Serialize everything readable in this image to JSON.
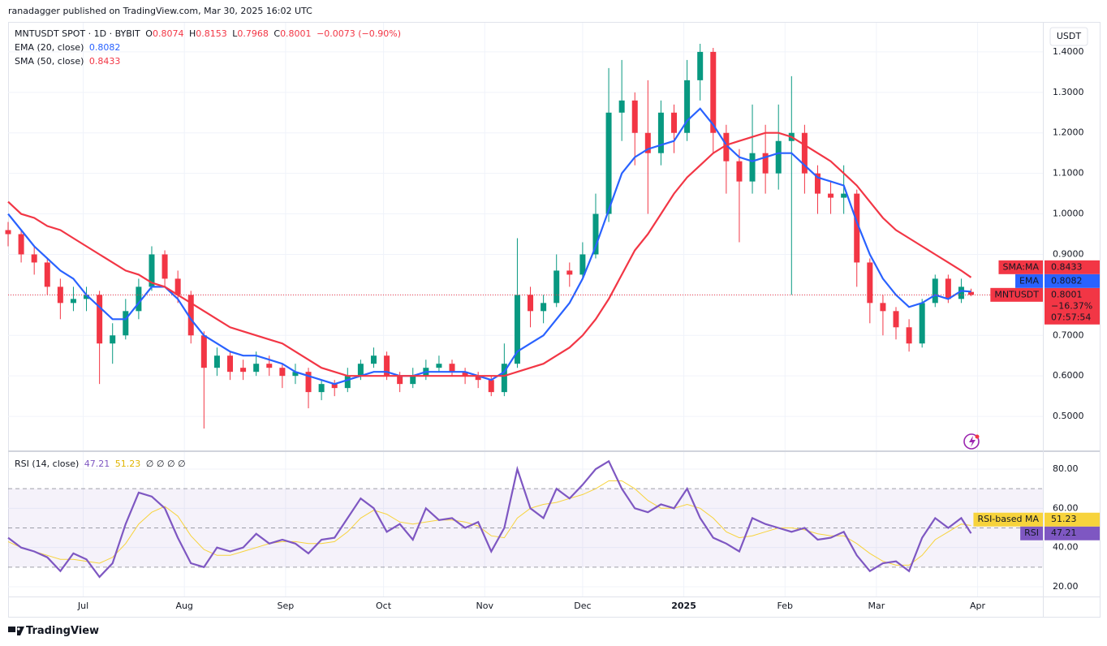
{
  "header": {
    "published": "ranadagger published on TradingView.com, Mar 30, 2025 16:02 UTC"
  },
  "footer": {
    "brand": "TradingView"
  },
  "chart_data": [
    {
      "type": "candlestick",
      "symbol": "MNTUSDT SPOT · 1D · BYBIT",
      "ohlc_labels": [
        "O",
        "H",
        "L",
        "C"
      ],
      "change": "−0.0073 (−0.90%)",
      "unit": "USDT",
      "grid": true,
      "x": [
        0,
        4,
        8,
        12,
        16,
        20,
        24,
        28,
        32,
        36,
        40,
        44,
        48,
        52,
        56,
        60,
        64,
        68,
        72,
        76,
        80,
        84,
        88,
        92,
        96,
        100,
        104,
        108,
        112,
        116,
        120,
        124,
        128,
        132,
        136,
        140,
        144,
        148,
        152,
        156,
        160,
        164,
        168,
        172,
        176,
        180,
        184,
        188,
        192,
        196,
        200,
        204,
        208,
        212,
        216,
        220,
        224,
        228,
        232,
        236,
        240,
        244,
        248,
        252,
        256,
        260,
        264,
        268,
        272,
        276,
        280,
        284,
        288,
        292,
        295
      ],
      "xlim": [
        0,
        317
      ],
      "xticks": [
        {
          "value": 23,
          "label": "Jul"
        },
        {
          "value": 54,
          "label": "Aug"
        },
        {
          "value": 85,
          "label": "Sep"
        },
        {
          "value": 115,
          "label": "Oct"
        },
        {
          "value": 146,
          "label": "Nov"
        },
        {
          "value": 176,
          "label": "Dec"
        },
        {
          "value": 207,
          "label": "2025"
        },
        {
          "value": 238,
          "label": "Feb"
        },
        {
          "value": 266,
          "label": "Mar"
        },
        {
          "value": 297,
          "label": "Apr"
        }
      ],
      "ylim": [
        0.416,
        1.472
      ],
      "yticks": [
        {
          "value": 0.5,
          "label": "0.5000"
        },
        {
          "value": 0.6,
          "label": "0.6000"
        },
        {
          "value": 0.7,
          "label": "0.7000"
        },
        {
          "value": 0.8,
          "label": "0.8000"
        },
        {
          "value": 0.9,
          "label": "0.9000"
        },
        {
          "value": 1.0,
          "label": "1.0000"
        },
        {
          "value": 1.1,
          "label": "1.1000"
        },
        {
          "value": 1.2,
          "label": "1.2000"
        },
        {
          "value": 1.3,
          "label": "1.3000"
        },
        {
          "value": 1.4,
          "label": "1.4000"
        }
      ],
      "candles": {
        "up_color": "#089981",
        "down_color": "#f23645",
        "open": [
          0.96,
          0.95,
          0.9,
          0.88,
          0.82,
          0.78,
          0.79,
          0.8,
          0.68,
          0.7,
          0.76,
          0.82,
          0.9,
          0.84,
          0.8,
          0.7,
          0.62,
          0.65,
          0.62,
          0.61,
          0.63,
          0.62,
          0.6,
          0.61,
          0.56,
          0.58,
          0.57,
          0.6,
          0.63,
          0.65,
          0.6,
          0.58,
          0.6,
          0.62,
          0.63,
          0.61,
          0.6,
          0.59,
          0.56,
          0.63,
          0.8,
          0.76,
          0.78,
          0.86,
          0.85,
          0.9,
          1.0,
          1.25,
          1.28,
          1.2,
          1.15,
          1.25,
          1.2,
          1.33,
          1.4,
          1.2,
          1.13,
          1.08,
          1.15,
          1.1,
          1.18,
          1.2,
          1.1,
          1.05,
          1.04,
          1.05,
          0.88,
          0.78,
          0.76,
          0.72,
          0.68,
          0.78,
          0.84,
          0.79,
          0.8074
        ],
        "high": [
          0.98,
          0.96,
          0.92,
          0.89,
          0.84,
          0.82,
          0.82,
          0.81,
          0.73,
          0.79,
          0.84,
          0.92,
          0.91,
          0.86,
          0.81,
          0.71,
          0.67,
          0.66,
          0.64,
          0.66,
          0.65,
          0.63,
          0.63,
          0.62,
          0.59,
          0.59,
          0.62,
          0.64,
          0.67,
          0.66,
          0.61,
          0.62,
          0.64,
          0.65,
          0.64,
          0.62,
          0.61,
          0.6,
          0.68,
          0.94,
          0.82,
          0.8,
          0.9,
          0.88,
          0.93,
          1.05,
          1.36,
          1.38,
          1.3,
          1.33,
          1.28,
          1.27,
          1.38,
          1.42,
          1.41,
          1.22,
          1.16,
          1.27,
          1.22,
          1.27,
          1.34,
          1.22,
          1.12,
          1.08,
          1.12,
          1.06,
          0.89,
          0.8,
          0.77,
          0.74,
          0.79,
          0.85,
          0.85,
          0.84,
          0.8153
        ],
        "low": [
          0.92,
          0.88,
          0.85,
          0.8,
          0.74,
          0.76,
          0.76,
          0.58,
          0.63,
          0.69,
          0.74,
          0.81,
          0.82,
          0.78,
          0.68,
          0.47,
          0.6,
          0.59,
          0.59,
          0.6,
          0.6,
          0.57,
          0.58,
          0.52,
          0.54,
          0.55,
          0.56,
          0.59,
          0.62,
          0.59,
          0.56,
          0.57,
          0.59,
          0.61,
          0.6,
          0.58,
          0.57,
          0.55,
          0.55,
          0.62,
          0.72,
          0.73,
          0.77,
          0.82,
          0.84,
          0.89,
          0.98,
          1.18,
          1.12,
          1.0,
          1.12,
          1.15,
          1.18,
          1.28,
          1.15,
          1.05,
          0.93,
          1.05,
          1.05,
          1.06,
          0.8,
          1.05,
          1.0,
          1.0,
          1.0,
          0.82,
          0.73,
          0.7,
          0.69,
          0.66,
          0.67,
          0.77,
          0.78,
          0.78,
          0.7968
        ],
        "close": [
          0.95,
          0.9,
          0.88,
          0.82,
          0.78,
          0.79,
          0.8,
          0.68,
          0.7,
          0.76,
          0.82,
          0.9,
          0.84,
          0.8,
          0.7,
          0.62,
          0.65,
          0.61,
          0.61,
          0.63,
          0.62,
          0.6,
          0.61,
          0.56,
          0.58,
          0.57,
          0.6,
          0.63,
          0.65,
          0.6,
          0.58,
          0.6,
          0.62,
          0.63,
          0.61,
          0.6,
          0.59,
          0.56,
          0.63,
          0.8,
          0.76,
          0.78,
          0.86,
          0.85,
          0.9,
          1.0,
          1.25,
          1.28,
          1.2,
          1.15,
          1.25,
          1.2,
          1.33,
          1.4,
          1.2,
          1.13,
          1.08,
          1.15,
          1.1,
          1.18,
          1.2,
          1.1,
          1.05,
          1.04,
          1.05,
          0.88,
          0.78,
          0.76,
          0.72,
          0.68,
          0.78,
          0.84,
          0.79,
          0.82,
          0.8001
        ]
      },
      "series": [
        {
          "name": "EMA (20, close)",
          "badge": "EMA",
          "color": "#2962ff",
          "values": [
            1.0,
            0.96,
            0.92,
            0.89,
            0.86,
            0.84,
            0.8,
            0.77,
            0.74,
            0.74,
            0.78,
            0.82,
            0.82,
            0.79,
            0.74,
            0.7,
            0.68,
            0.66,
            0.65,
            0.65,
            0.64,
            0.63,
            0.61,
            0.6,
            0.59,
            0.58,
            0.59,
            0.6,
            0.61,
            0.61,
            0.6,
            0.6,
            0.61,
            0.61,
            0.61,
            0.61,
            0.6,
            0.59,
            0.61,
            0.66,
            0.68,
            0.7,
            0.74,
            0.78,
            0.84,
            0.92,
            1.01,
            1.1,
            1.14,
            1.16,
            1.17,
            1.18,
            1.23,
            1.26,
            1.22,
            1.17,
            1.14,
            1.13,
            1.14,
            1.15,
            1.15,
            1.12,
            1.09,
            1.08,
            1.07,
            0.98,
            0.9,
            0.84,
            0.8,
            0.77,
            0.78,
            0.8,
            0.79,
            0.81,
            0.8082
          ]
        },
        {
          "name": "SMA (50, close)",
          "badge": "SMA:MA",
          "color": "#f23645",
          "values": [
            1.03,
            1.0,
            0.99,
            0.97,
            0.96,
            0.94,
            0.92,
            0.9,
            0.88,
            0.86,
            0.85,
            0.83,
            0.82,
            0.8,
            0.78,
            0.76,
            0.74,
            0.72,
            0.71,
            0.7,
            0.69,
            0.68,
            0.66,
            0.64,
            0.62,
            0.61,
            0.6,
            0.6,
            0.6,
            0.6,
            0.6,
            0.6,
            0.6,
            0.6,
            0.6,
            0.6,
            0.6,
            0.6,
            0.6,
            0.61,
            0.62,
            0.63,
            0.65,
            0.67,
            0.7,
            0.74,
            0.79,
            0.85,
            0.91,
            0.95,
            1.0,
            1.05,
            1.09,
            1.12,
            1.15,
            1.17,
            1.18,
            1.19,
            1.2,
            1.2,
            1.19,
            1.17,
            1.15,
            1.13,
            1.1,
            1.07,
            1.03,
            0.99,
            0.96,
            0.94,
            0.92,
            0.9,
            0.88,
            0.86,
            0.8433
          ]
        }
      ],
      "last_price": {
        "name": "MNTUSDT",
        "change": "−16.37%",
        "countdown": "07:57:54"
      }
    },
    {
      "type": "line",
      "title": "RSI (14, close)",
      "flags": "∅ ∅ ∅ ∅",
      "grid": true,
      "ylim": [
        15.03,
        88.69
      ],
      "yticks": [
        {
          "value": 20,
          "label": "20.00"
        },
        {
          "value": 40,
          "label": "40.00"
        },
        {
          "value": 60,
          "label": "60.00"
        },
        {
          "value": 80,
          "label": "80.00"
        }
      ],
      "bands": [
        30,
        50,
        70
      ],
      "band_color": "#7e57c2",
      "series": [
        {
          "name": "RSI",
          "color": "#7e57c2",
          "values": [
            45,
            40,
            38,
            35,
            28,
            37,
            34,
            25,
            32,
            52,
            68,
            66,
            60,
            45,
            32,
            30,
            40,
            38,
            40,
            47,
            42,
            44,
            42,
            37,
            44,
            45,
            55,
            65,
            60,
            48,
            52,
            44,
            60,
            54,
            55,
            50,
            53,
            38,
            50,
            80,
            60,
            55,
            70,
            65,
            72,
            80,
            84,
            70,
            60,
            58,
            62,
            60,
            70,
            55,
            45,
            42,
            38,
            55,
            52,
            50,
            48,
            50,
            44,
            45,
            48,
            36,
            28,
            32,
            33,
            28,
            45,
            55,
            50,
            55,
            47.21
          ]
        },
        {
          "name": "RSI-based MA",
          "color": "#f7d33c",
          "values": [
            43,
            40,
            38,
            36,
            34,
            34,
            33,
            32,
            35,
            42,
            52,
            58,
            61,
            56,
            46,
            39,
            36,
            36,
            38,
            40,
            42,
            43,
            43,
            42,
            42,
            43,
            48,
            55,
            59,
            57,
            53,
            52,
            53,
            54,
            54,
            53,
            51,
            46,
            45,
            55,
            60,
            62,
            63,
            65,
            67,
            70,
            74,
            74,
            70,
            64,
            60,
            60,
            62,
            60,
            55,
            48,
            45,
            46,
            48,
            50,
            50,
            49,
            47,
            46,
            46,
            42,
            37,
            33,
            31,
            31,
            36,
            44,
            48,
            52,
            51.23
          ]
        }
      ]
    }
  ]
}
